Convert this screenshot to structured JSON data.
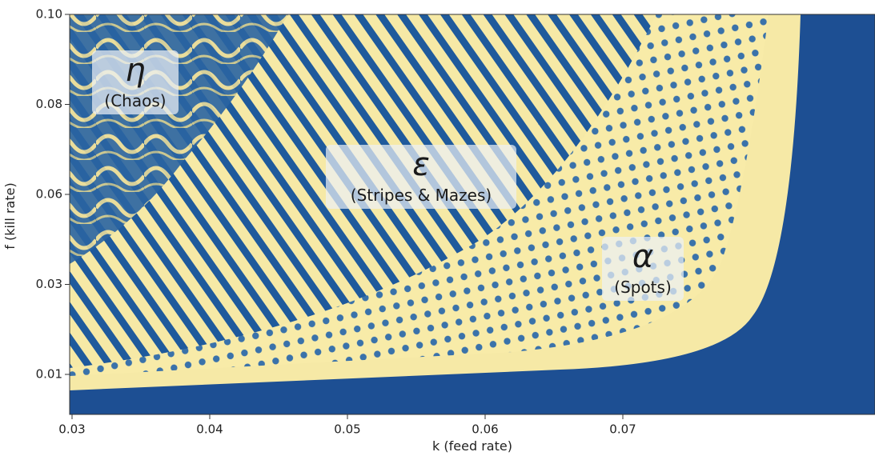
{
  "chart_data": {
    "type": "phase-diagram",
    "x_label": "k (feed rate)",
    "y_label": "f (kill rate)",
    "xlim": [
      0.03,
      0.088
    ],
    "xticks": [
      0.03,
      0.04,
      0.05,
      0.06,
      0.07
    ],
    "yticks": [
      0.01,
      0.03,
      0.06,
      0.08,
      {
        "value": 0.1,
        "label": "0.10"
      }
    ],
    "annotations": [
      {
        "symbol": "η",
        "label": "(Chaos)"
      },
      {
        "symbol": "ε",
        "label": "(Stripes & Mazes)"
      },
      {
        "symbol": "α",
        "label": "(Spots)"
      }
    ]
  }
}
